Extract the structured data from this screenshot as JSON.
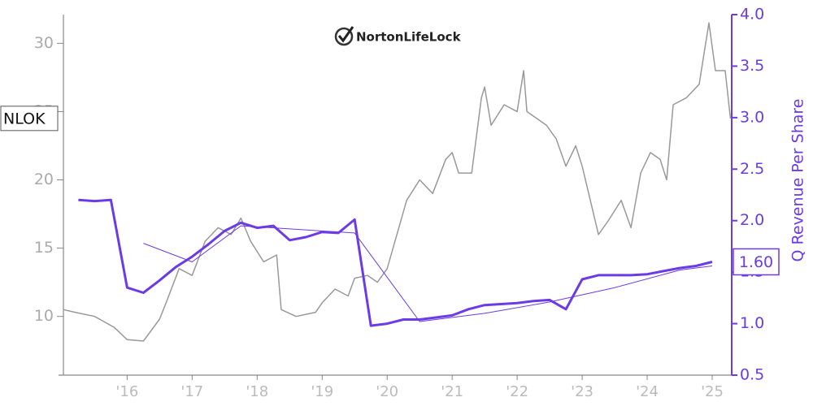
{
  "chart_data": {
    "type": "line",
    "logo_text": "NortonLifeLock",
    "y2label": "Q Revenue Per Share",
    "xlim": [
      2015.02,
      2025.3
    ],
    "xticks": [
      {
        "value": 2016,
        "label": "'16"
      },
      {
        "value": 2017,
        "label": "'17"
      },
      {
        "value": 2018,
        "label": "'18"
      },
      {
        "value": 2019,
        "label": "'19"
      },
      {
        "value": 2020,
        "label": "'20"
      },
      {
        "value": 2021,
        "label": "'21"
      },
      {
        "value": 2022,
        "label": "'22"
      },
      {
        "value": 2023,
        "label": "'23"
      },
      {
        "value": 2024,
        "label": "'24"
      },
      {
        "value": 2025,
        "label": "'25"
      }
    ],
    "ylim": [
      5.7,
      32.1
    ],
    "yticks": [
      10,
      15,
      20,
      25,
      30
    ],
    "y2lim": [
      0.5,
      4.0
    ],
    "y2ticks": [
      0.5,
      1.0,
      1.5,
      2.0,
      2.5,
      3.0,
      3.5,
      4.0
    ],
    "y2tick_labels": [
      "0.5",
      "1.0",
      "1.5",
      "2.0",
      "2.5",
      "3.0",
      "3.5",
      "4.0"
    ],
    "annotations": [
      {
        "value": 24.5,
        "label": "NLOK",
        "axis": "y"
      },
      {
        "value": 1.6,
        "label": "1.60",
        "axis": "y2"
      }
    ],
    "series": [
      {
        "color": "#999999",
        "width": 1.5,
        "axis": "y",
        "x": [
          2015.02,
          2015.2,
          2015.5,
          2015.8,
          2016.0,
          2016.25,
          2016.5,
          2016.6,
          2016.8,
          2017.0,
          2017.2,
          2017.4,
          2017.6,
          2017.75,
          2017.9,
          2018.1,
          2018.3,
          2018.37,
          2018.6,
          2018.9,
          2019.0,
          2019.2,
          2019.4,
          2019.5,
          2019.7,
          2019.85,
          2020.0,
          2020.15,
          2020.3,
          2020.5,
          2020.7,
          2020.9,
          2021.0,
          2021.1,
          2021.3,
          2021.45,
          2021.5,
          2021.6,
          2021.8,
          2022.0,
          2022.1,
          2022.15,
          2022.3,
          2022.45,
          2022.6,
          2022.75,
          2022.9,
          2023.0,
          2023.15,
          2023.25,
          2023.4,
          2023.6,
          2023.75,
          2023.9,
          2024.05,
          2024.2,
          2024.3,
          2024.4,
          2024.6,
          2024.8,
          2024.95,
          2025.05,
          2025.2,
          2025.28
        ],
        "values": [
          10.5,
          10.3,
          10.0,
          9.2,
          8.3,
          8.2,
          9.8,
          11.0,
          13.5,
          13.0,
          15.5,
          16.5,
          16.0,
          17.2,
          15.5,
          14.0,
          14.5,
          10.5,
          10.0,
          10.3,
          11.0,
          12.0,
          11.5,
          12.8,
          13.0,
          12.5,
          13.5,
          16.0,
          18.5,
          20.0,
          19.0,
          21.5,
          22.0,
          20.5,
          20.5,
          26.0,
          26.8,
          24.0,
          25.5,
          25.0,
          28.0,
          25.0,
          24.5,
          24.0,
          23.0,
          21.0,
          22.5,
          21.0,
          18.0,
          16.0,
          17.0,
          18.5,
          16.5,
          20.5,
          22.0,
          21.5,
          20.0,
          25.5,
          26.0,
          27.0,
          31.5,
          28.0,
          28.0,
          24.5
        ]
      },
      {
        "color": "#6b3be6",
        "width": 3,
        "axis": "y2",
        "x": [
          2015.25,
          2015.5,
          2015.75,
          2016.0,
          2016.25,
          2016.5,
          2016.75,
          2017.0,
          2017.25,
          2017.5,
          2017.75,
          2018.0,
          2018.25,
          2018.5,
          2018.75,
          2019.0,
          2019.25,
          2019.5,
          2019.75,
          2020.0,
          2020.25,
          2020.5,
          2020.75,
          2021.0,
          2021.25,
          2021.5,
          2021.75,
          2022.0,
          2022.25,
          2022.5,
          2022.75,
          2023.0,
          2023.25,
          2023.5,
          2023.75,
          2024.0,
          2024.25,
          2024.5,
          2024.75,
          2025.0
        ],
        "values": [
          2.2,
          2.19,
          2.2,
          1.35,
          1.3,
          1.42,
          1.55,
          1.65,
          1.77,
          1.9,
          1.98,
          1.93,
          1.95,
          1.81,
          1.84,
          1.89,
          1.88,
          2.01,
          0.98,
          1.0,
          1.04,
          1.04,
          1.06,
          1.08,
          1.14,
          1.18,
          1.19,
          1.2,
          1.22,
          1.23,
          1.14,
          1.43,
          1.47,
          1.47,
          1.47,
          1.48,
          1.51,
          1.54,
          1.56,
          1.6
        ]
      },
      {
        "color": "#6b3be6",
        "width": 1,
        "axis": "y2",
        "x": [
          2016.25,
          2017.0,
          2017.75,
          2018.5,
          2019.5,
          2020.5,
          2021.5,
          2022.5,
          2023.5,
          2024.5,
          2025.0
        ],
        "values": [
          1.78,
          1.6,
          1.95,
          1.92,
          1.88,
          1.02,
          1.1,
          1.21,
          1.35,
          1.52,
          1.56
        ]
      }
    ]
  }
}
